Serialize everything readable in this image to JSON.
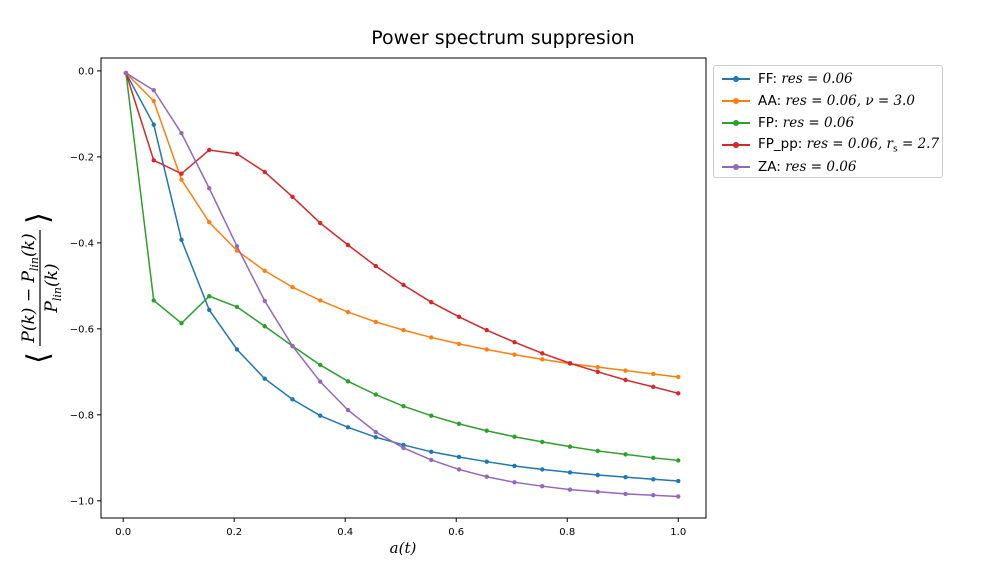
{
  "chart_data": {
    "type": "line",
    "title": "Power spectrum suppresion",
    "xlabel": "a(t)",
    "ylabel": "⟨(P(k) − P_lin(k)) / P_lin(k)⟩",
    "xlim": [
      -0.04,
      1.05
    ],
    "ylim": [
      -1.04,
      0.03
    ],
    "xticks": [
      0.0,
      0.2,
      0.4,
      0.6,
      0.8,
      1.0
    ],
    "yticks": [
      0.0,
      -0.2,
      -0.4,
      -0.6,
      -0.8,
      -1.0
    ],
    "grid": false,
    "legend_position": "outside-top-right",
    "x": [
      0.005,
      0.055,
      0.105,
      0.155,
      0.205,
      0.255,
      0.305,
      0.355,
      0.405,
      0.455,
      0.505,
      0.555,
      0.605,
      0.655,
      0.705,
      0.755,
      0.805,
      0.855,
      0.905,
      0.955,
      1.0
    ],
    "series": [
      {
        "name": "FF: res = 0.06",
        "label_prefix": "FF: ",
        "label_math": "res = 0.06",
        "color": "#1f77b4",
        "values": [
          -0.005,
          -0.125,
          -0.393,
          -0.556,
          -0.648,
          -0.716,
          -0.764,
          -0.802,
          -0.829,
          -0.852,
          -0.87,
          -0.886,
          -0.898,
          -0.909,
          -0.919,
          -0.927,
          -0.934,
          -0.94,
          -0.945,
          -0.95,
          -0.954
        ]
      },
      {
        "name": "AA: res = 0.06, ν = 3.0",
        "label_prefix": "AA: ",
        "label_math": "res = 0.06, ν = 3.0",
        "color": "#ff7f0e",
        "values": [
          -0.005,
          -0.07,
          -0.253,
          -0.352,
          -0.418,
          -0.465,
          -0.503,
          -0.534,
          -0.561,
          -0.584,
          -0.603,
          -0.62,
          -0.635,
          -0.648,
          -0.66,
          -0.671,
          -0.681,
          -0.689,
          -0.697,
          -0.705,
          -0.712
        ]
      },
      {
        "name": "FP: res = 0.06",
        "label_prefix": "FP: ",
        "label_math": "res = 0.06",
        "color": "#2ca02c",
        "values": [
          -0.005,
          -0.534,
          -0.587,
          -0.524,
          -0.549,
          -0.594,
          -0.64,
          -0.684,
          -0.722,
          -0.753,
          -0.78,
          -0.802,
          -0.821,
          -0.837,
          -0.851,
          -0.863,
          -0.874,
          -0.884,
          -0.892,
          -0.9,
          -0.906
        ]
      },
      {
        "name": "FP_pp: res = 0.06, r_s = 2.7",
        "label_prefix": "FP_pp: ",
        "label_math": "res = 0.06, r",
        "label_sub": "s",
        "label_tail": " = 2.7",
        "color": "#d62728",
        "values": [
          -0.005,
          -0.208,
          -0.239,
          -0.184,
          -0.193,
          -0.235,
          -0.293,
          -0.354,
          -0.405,
          -0.454,
          -0.498,
          -0.538,
          -0.572,
          -0.603,
          -0.631,
          -0.657,
          -0.68,
          -0.7,
          -0.719,
          -0.735,
          -0.75
        ]
      },
      {
        "name": "ZA: res = 0.06",
        "label_prefix": "ZA: ",
        "label_math": "res = 0.06",
        "color": "#9467bd",
        "values": [
          -0.005,
          -0.045,
          -0.145,
          -0.273,
          -0.408,
          -0.535,
          -0.64,
          -0.723,
          -0.789,
          -0.84,
          -0.877,
          -0.905,
          -0.927,
          -0.944,
          -0.957,
          -0.966,
          -0.974,
          -0.979,
          -0.984,
          -0.987,
          -0.99
        ]
      }
    ]
  }
}
